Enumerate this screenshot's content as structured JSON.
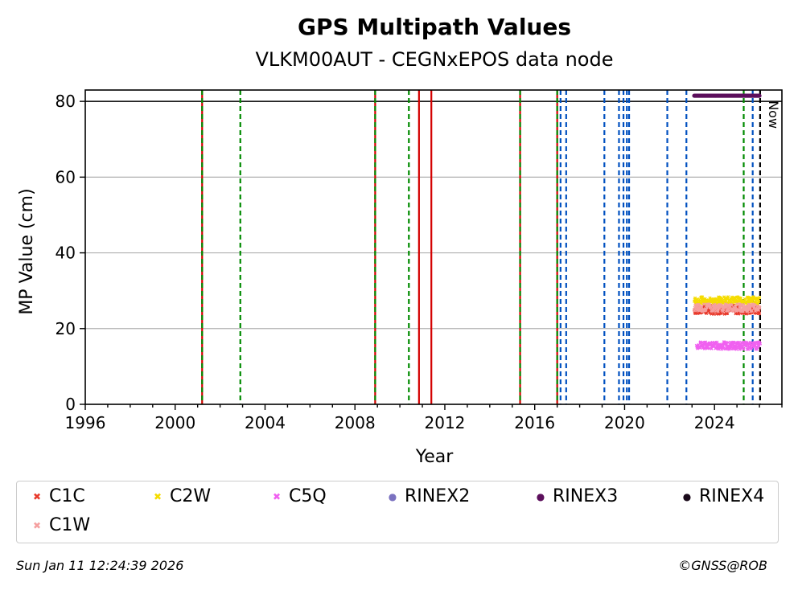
{
  "chart_data": {
    "type": "scatter",
    "title": "GPS Multipath Values",
    "subtitle": "VLKM00AUT - CEGNxEPOS data node",
    "xlabel": "Year",
    "ylabel": "MP Value (cm)",
    "xlim": [
      1996,
      2027
    ],
    "ylim": [
      0,
      83
    ],
    "x_ticks": [
      1996,
      2000,
      2004,
      2008,
      2012,
      2016,
      2020,
      2024
    ],
    "x_tick_labels": [
      "1996",
      "2000",
      "2004",
      "2008",
      "2012",
      "2016",
      "2020",
      "2024"
    ],
    "y_ticks": [
      0,
      20,
      40,
      60,
      80
    ],
    "y_tick_labels": [
      "0",
      "20",
      "40",
      "60",
      "80"
    ],
    "grid": "horizontal",
    "reference_line": 80,
    "now_label": "Now",
    "now_year": 2026.03,
    "event_lines": [
      {
        "year": 2001.2,
        "style": "red-green-dashed"
      },
      {
        "year": 2002.9,
        "style": "green-dashed"
      },
      {
        "year": 2008.9,
        "style": "red-green-dashed"
      },
      {
        "year": 2010.4,
        "style": "green-dashed"
      },
      {
        "year": 2010.85,
        "style": "red-solid"
      },
      {
        "year": 2011.4,
        "style": "red-solid"
      },
      {
        "year": 2015.35,
        "style": "red-green-dashed"
      },
      {
        "year": 2017.0,
        "style": "red-green-dashed"
      },
      {
        "year": 2017.15,
        "style": "blue-dashed"
      },
      {
        "year": 2017.4,
        "style": "blue-dashed"
      },
      {
        "year": 2019.1,
        "style": "blue-dashed"
      },
      {
        "year": 2019.75,
        "style": "blue-dashed"
      },
      {
        "year": 2019.95,
        "style": "blue-dashed"
      },
      {
        "year": 2020.1,
        "style": "blue-dashed"
      },
      {
        "year": 2020.2,
        "style": "blue-dashed"
      },
      {
        "year": 2021.9,
        "style": "blue-dashed"
      },
      {
        "year": 2022.75,
        "style": "blue-dashed"
      },
      {
        "year": 2025.3,
        "style": "green-dashed"
      },
      {
        "year": 2025.7,
        "style": "blue-dashed"
      }
    ],
    "series": [
      {
        "name": "C1C",
        "color": "#e8392b",
        "marker": "x",
        "x_range": [
          2023.1,
          2026.0
        ],
        "mean": 25.0,
        "spread": 1.2
      },
      {
        "name": "C2W",
        "color": "#f5dc00",
        "marker": "x",
        "x_range": [
          2023.1,
          2026.0
        ],
        "mean": 27.5,
        "spread": 0.9
      },
      {
        "name": "C5Q",
        "color": "#f060f0",
        "marker": "x",
        "x_range": [
          2023.2,
          2026.0
        ],
        "mean": 15.5,
        "spread": 1.0
      },
      {
        "name": "RINEX2",
        "color": "#7b72c0",
        "marker": "o"
      },
      {
        "name": "RINEX3",
        "color": "#5c0f5c",
        "marker": "o",
        "x_range": [
          2023.1,
          2026.0
        ],
        "y": 81.5
      },
      {
        "name": "RINEX4",
        "color": "#1a0a1a",
        "marker": "o"
      },
      {
        "name": "C1W",
        "color": "#f5a0a0",
        "marker": "x",
        "x_range": [
          2023.1,
          2026.0
        ],
        "mean": 25.5,
        "spread": 1.0
      }
    ]
  },
  "legend": {
    "items": [
      {
        "label": "C1C",
        "symbol": "✖",
        "color": "#e8392b"
      },
      {
        "label": "C2W",
        "symbol": "✖",
        "color": "#f5dc00"
      },
      {
        "label": "C5Q",
        "symbol": "✖",
        "color": "#f060f0"
      },
      {
        "label": "RINEX2",
        "symbol": "●",
        "color": "#7b72c0"
      },
      {
        "label": "RINEX3",
        "symbol": "●",
        "color": "#5c0f5c"
      },
      {
        "label": "RINEX4",
        "symbol": "●",
        "color": "#1a0a1a"
      },
      {
        "label": "C1W",
        "symbol": "✖",
        "color": "#f5a0a0"
      }
    ]
  },
  "footer": {
    "timestamp": "Sun Jan 11 12:24:39 2026",
    "credit": "©GNSS@ROB"
  }
}
